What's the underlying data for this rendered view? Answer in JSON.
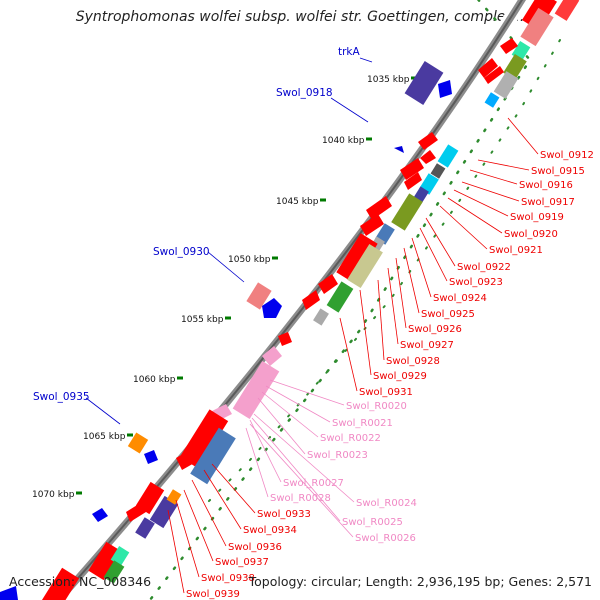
{
  "title": "Syntrophomonas wolfei subsp. wolfei str. Goettingen, complet...",
  "footer": {
    "accession": "Accession: NC_008346",
    "topology": "Topology: circular; Length: 2,936,195 bp; Genes: 2,571"
  },
  "ticks": [
    "1035 kbp",
    "1040 kbp",
    "1045 kbp",
    "1050 kbp",
    "1055 kbp",
    "1060 kbp",
    "1065 kbp",
    "1070 kbp"
  ],
  "left_labels": [
    "trkA",
    "Swol_0918",
    "Swol_0930",
    "Swol_0935"
  ],
  "right_labels": [
    "Swol_0912",
    "Swol_0915",
    "Swol_0916",
    "Swol_0917",
    "Swol_0919",
    "Swol_0920",
    "Swol_0921",
    "Swol_0922",
    "Swol_0923",
    "Swol_0924",
    "Swol_0925",
    "Swol_0926",
    "Swol_0927",
    "Swol_0928",
    "Swol_0929",
    "Swol_0931",
    "Swol_R0020",
    "Swol_R0021",
    "Swol_R0022",
    "Swol_R0023",
    "Swol_R0027",
    "Swol_R0028",
    "Swol_R0024",
    "Swol_R0025",
    "Swol_R0026",
    "Swol_0933",
    "Swol_0934",
    "Swol_0936",
    "Swol_0937",
    "Swol_0938",
    "Swol_0939"
  ],
  "colors": {
    "cds": "#ff0000",
    "rna": "#f4a0cc",
    "label_red": "#ee0000",
    "label_pink": "#f088c4",
    "label_blue": "#0000cc",
    "tick_green": "#007a00",
    "backbone": "#8c8c8c"
  }
}
